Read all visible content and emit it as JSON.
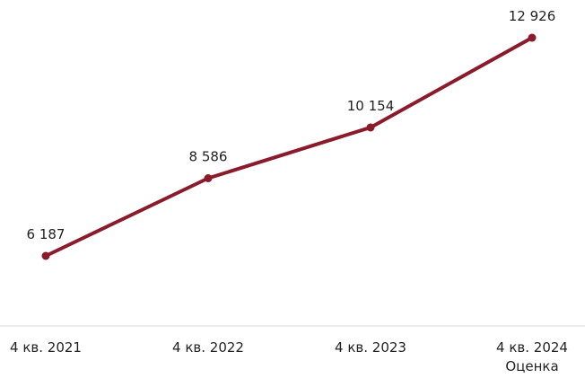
{
  "chart_data": {
    "type": "line",
    "title": "",
    "xlabel": "",
    "ylabel": "",
    "categories": [
      "4 кв. 2021",
      "4 кв. 2022",
      "4 кв. 2023",
      "4 кв. 2024"
    ],
    "category_sublabels": [
      "",
      "",
      "",
      "Оценка"
    ],
    "values": [
      6187,
      8586,
      10154,
      12926
    ],
    "data_labels": [
      "6 187",
      "8 586",
      "10 154",
      "12 926"
    ],
    "ylim": [
      0,
      14000
    ],
    "grid": false,
    "legend": "none",
    "colors": {
      "line": "#8B1A2B",
      "marker": "#8B1A2B",
      "axis": "#d9d9d9"
    }
  }
}
